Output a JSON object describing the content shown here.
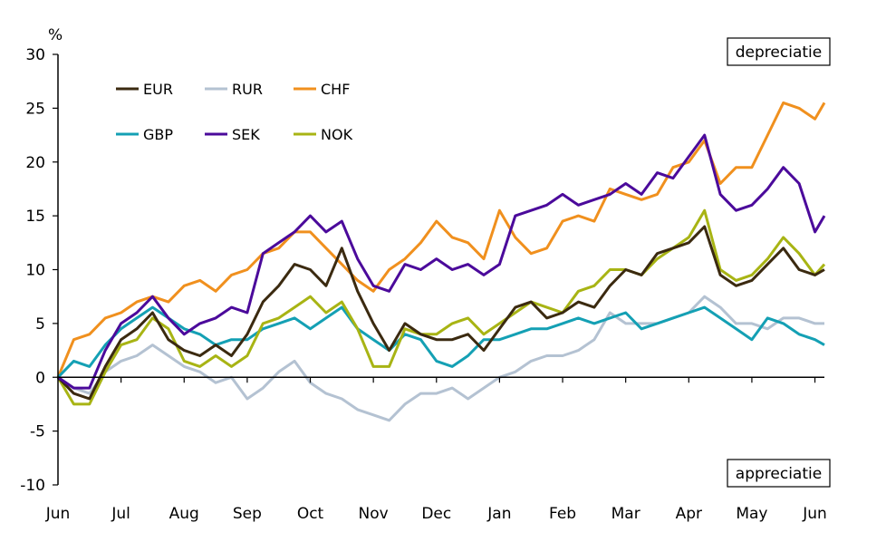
{
  "chart_data": {
    "type": "line",
    "title": "",
    "ylabel": "%",
    "xlabel": "",
    "ylim": [
      -10,
      30
    ],
    "yticks": [
      "30",
      "25",
      "20",
      "15",
      "10",
      "5",
      "0",
      "-5",
      "-10"
    ],
    "ytick_values": [
      30,
      25,
      20,
      15,
      10,
      5,
      0,
      -5,
      -10
    ],
    "xlim": [
      0,
      12.15
    ],
    "xticks": [
      "Jun",
      "Jul",
      "Aug",
      "Sep",
      "Oct",
      "Nov",
      "Dec",
      "Jan",
      "Feb",
      "Mar",
      "Apr",
      "May",
      "Jun"
    ],
    "xtick_values": [
      0,
      1,
      2,
      3,
      4,
      5,
      6,
      7,
      8,
      9,
      10,
      11,
      12
    ],
    "grid": false,
    "legend": "top-left",
    "annotations": {
      "top": "depreciatie",
      "bottom": "appreciatie"
    },
    "x": [
      0,
      0.25,
      0.5,
      0.75,
      1.0,
      1.25,
      1.5,
      1.75,
      2.0,
      2.25,
      2.5,
      2.75,
      3.0,
      3.25,
      3.5,
      3.75,
      4.0,
      4.25,
      4.5,
      4.75,
      5.0,
      5.25,
      5.5,
      5.75,
      6.0,
      6.25,
      6.5,
      6.75,
      7.0,
      7.25,
      7.5,
      7.75,
      8.0,
      8.25,
      8.5,
      8.75,
      9.0,
      9.25,
      9.5,
      9.75,
      10.0,
      10.25,
      10.5,
      10.75,
      11.0,
      11.25,
      11.5,
      11.75,
      12.0,
      12.15
    ],
    "series": [
      {
        "name": "EUR",
        "color": "#3b2a10",
        "values": [
          0,
          -1.5,
          -2.0,
          1.0,
          3.5,
          4.5,
          6.0,
          3.5,
          2.5,
          2.0,
          3.0,
          2.0,
          4.0,
          7.0,
          8.5,
          10.5,
          10.0,
          8.5,
          12.0,
          8.0,
          5.0,
          2.5,
          5.0,
          4.0,
          3.5,
          3.5,
          4.0,
          2.5,
          4.5,
          6.5,
          7.0,
          5.5,
          6.0,
          7.0,
          6.5,
          8.5,
          10.0,
          9.5,
          11.5,
          12.0,
          12.5,
          14.0,
          9.5,
          8.5,
          9.0,
          10.5,
          12.0,
          10.0,
          9.5,
          10.0
        ]
      },
      {
        "name": "RUR",
        "color": "#b4c2d2",
        "values": [
          0,
          -1.0,
          -1.5,
          0.5,
          1.5,
          2.0,
          3.0,
          2.0,
          1.0,
          0.5,
          -0.5,
          0.0,
          -2.0,
          -1.0,
          0.5,
          1.5,
          -0.5,
          -1.5,
          -2.0,
          -3.0,
          -3.5,
          -4.0,
          -2.5,
          -1.5,
          -1.5,
          -1.0,
          -2.0,
          -1.0,
          0.0,
          0.5,
          1.5,
          2.0,
          2.0,
          2.5,
          3.5,
          6.0,
          5.0,
          5.0,
          5.0,
          5.5,
          6.0,
          7.5,
          6.5,
          5.0,
          5.0,
          4.5,
          5.5,
          5.5,
          5.0,
          5.0
        ]
      },
      {
        "name": "CHF",
        "color": "#f0901e",
        "values": [
          0,
          3.5,
          4.0,
          5.5,
          6.0,
          7.0,
          7.5,
          7.0,
          8.5,
          9.0,
          8.0,
          9.5,
          10.0,
          11.5,
          12.0,
          13.5,
          13.5,
          12.0,
          10.5,
          9.0,
          8.0,
          10.0,
          11.0,
          12.5,
          14.5,
          13.0,
          12.5,
          11.0,
          15.5,
          13.0,
          11.5,
          12.0,
          14.5,
          15.0,
          14.5,
          17.5,
          17.0,
          16.5,
          17.0,
          19.5,
          20.0,
          22.0,
          18.0,
          19.5,
          19.5,
          22.5,
          25.5,
          25.0,
          24.0,
          25.5
        ]
      },
      {
        "name": "GBP",
        "color": "#14a0b4",
        "values": [
          0,
          1.5,
          1.0,
          3.0,
          4.5,
          5.5,
          6.5,
          5.5,
          4.5,
          4.0,
          3.0,
          3.5,
          3.5,
          4.5,
          5.0,
          5.5,
          4.5,
          5.5,
          6.5,
          4.5,
          3.5,
          2.5,
          4.0,
          3.5,
          1.5,
          1.0,
          2.0,
          3.5,
          3.5,
          4.0,
          4.5,
          4.5,
          5.0,
          5.5,
          5.0,
          5.5,
          6.0,
          4.5,
          5.0,
          5.5,
          6.0,
          6.5,
          5.5,
          4.5,
          3.5,
          5.5,
          5.0,
          4.0,
          3.5,
          3.0
        ]
      },
      {
        "name": "SEK",
        "color": "#4b0a9b",
        "values": [
          0,
          -1.0,
          -1.0,
          2.5,
          5.0,
          6.0,
          7.5,
          5.5,
          4.0,
          5.0,
          5.5,
          6.5,
          6.0,
          11.5,
          12.5,
          13.5,
          15.0,
          13.5,
          14.5,
          11.0,
          8.5,
          8.0,
          10.5,
          10.0,
          11.0,
          10.0,
          10.5,
          9.5,
          10.5,
          15.0,
          15.5,
          16.0,
          17.0,
          16.0,
          16.5,
          17.0,
          18.0,
          17.0,
          19.0,
          18.5,
          20.5,
          22.5,
          17.0,
          15.5,
          16.0,
          17.5,
          19.5,
          18.0,
          13.5,
          15.0
        ]
      },
      {
        "name": "NOK",
        "color": "#a8b414",
        "values": [
          0,
          -2.5,
          -2.5,
          0.5,
          3.0,
          3.5,
          5.5,
          4.5,
          1.5,
          1.0,
          2.0,
          1.0,
          2.0,
          5.0,
          5.5,
          6.5,
          7.5,
          6.0,
          7.0,
          4.5,
          1.0,
          1.0,
          4.5,
          4.0,
          4.0,
          5.0,
          5.5,
          4.0,
          5.0,
          6.0,
          7.0,
          6.5,
          6.0,
          8.0,
          8.5,
          10.0,
          10.0,
          9.5,
          11.0,
          12.0,
          13.0,
          15.5,
          10.0,
          9.0,
          9.5,
          11.0,
          13.0,
          11.5,
          9.5,
          10.5
        ]
      }
    ]
  }
}
